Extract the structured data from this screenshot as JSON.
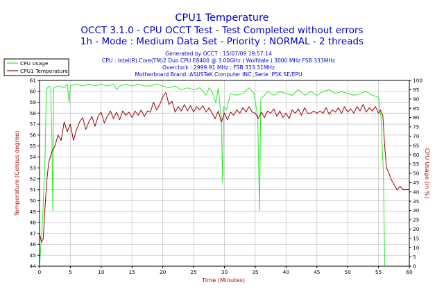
{
  "chart_data": {
    "type": "line",
    "title": "CPU1 Temperature",
    "subtitle_lines": [
      "OCCT 3.1.0 - CPU OCCT Test - Test Completed without errors",
      "1h - Mode : Medium Data Set - Priority : NORMAL - 2 threads"
    ],
    "info_lines": [
      "Generated by OCCT : 15/07/09 19:57:14",
      "CPU : Intel(R) Core(TM)2 Duo CPU E8400 @ 3.00GHz ( Wolfdale ) 3000 MHz FSB 333MHz",
      "Overclock : 2999.91 MHz ; FSB 333.31MHz",
      "Motherboard Brand :ASUSTeK Computer INC.,Serie :P5K SE/EPU"
    ],
    "xlabel": "Time (Minutes)",
    "ylabel_left": "Temperature (Celsius degree)",
    "ylabel_right": "CPU Usage (in %)",
    "xlim": [
      0,
      60
    ],
    "ylim_left": [
      44,
      61
    ],
    "ylim_right": [
      0,
      100
    ],
    "x_ticks": [
      "0",
      "5",
      "10",
      "15",
      "20",
      "25",
      "30",
      "35",
      "40",
      "45",
      "50",
      "55",
      "60"
    ],
    "y_ticks_left": [
      "44",
      "45",
      "46",
      "47",
      "48",
      "49",
      "50",
      "51",
      "52",
      "53",
      "54",
      "55",
      "56",
      "57",
      "58",
      "59",
      "60",
      "61"
    ],
    "y_ticks_right": [
      "0",
      "5",
      "10",
      "15",
      "20",
      "25",
      "30",
      "35",
      "40",
      "45",
      "50",
      "55",
      "60",
      "65",
      "70",
      "75",
      "80",
      "85",
      "90",
      "95",
      "100"
    ],
    "grid": true,
    "legend_position": "top-left",
    "series": [
      {
        "name": "CPU Usage",
        "color": "#22ee22",
        "axis": "right",
        "points": [
          [
            0,
            0
          ],
          [
            0.5,
            25
          ],
          [
            0.9,
            60
          ],
          [
            1.1,
            95
          ],
          [
            1.5,
            97
          ],
          [
            1.8,
            96
          ],
          [
            2.0,
            70
          ],
          [
            2.15,
            30
          ],
          [
            2.3,
            96
          ],
          [
            3,
            97
          ],
          [
            4,
            96
          ],
          [
            4.5,
            98
          ],
          [
            4.8,
            88
          ],
          [
            5.0,
            97
          ],
          [
            6,
            98
          ],
          [
            7,
            97
          ],
          [
            8,
            98
          ],
          [
            9,
            97
          ],
          [
            10,
            98
          ],
          [
            11,
            97
          ],
          [
            12,
            98
          ],
          [
            12.5,
            95
          ],
          [
            13,
            97
          ],
          [
            14,
            98
          ],
          [
            15,
            97
          ],
          [
            16,
            98
          ],
          [
            17,
            97
          ],
          [
            18,
            97
          ],
          [
            19,
            98
          ],
          [
            20,
            97
          ],
          [
            21,
            96
          ],
          [
            22,
            97
          ],
          [
            23,
            95
          ],
          [
            24,
            96
          ],
          [
            25,
            95
          ],
          [
            26,
            96
          ],
          [
            27,
            92
          ],
          [
            27.5,
            96
          ],
          [
            28,
            94
          ],
          [
            28.6,
            88
          ],
          [
            29,
            96
          ],
          [
            29.5,
            79
          ],
          [
            29.7,
            45
          ],
          [
            29.9,
            86
          ],
          [
            30.3,
            84
          ],
          [
            31,
            93
          ],
          [
            32,
            92
          ],
          [
            33,
            93
          ],
          [
            34,
            96
          ],
          [
            34.8,
            93
          ],
          [
            35.4,
            80
          ],
          [
            35.7,
            30
          ],
          [
            35.9,
            90
          ],
          [
            36.5,
            92
          ],
          [
            37,
            94
          ],
          [
            38,
            92
          ],
          [
            39,
            94
          ],
          [
            40,
            93
          ],
          [
            41,
            92
          ],
          [
            42,
            95
          ],
          [
            43,
            92
          ],
          [
            44,
            94
          ],
          [
            45,
            92
          ],
          [
            46,
            94
          ],
          [
            47,
            95
          ],
          [
            48,
            93
          ],
          [
            49,
            94
          ],
          [
            50,
            93
          ],
          [
            51,
            92
          ],
          [
            52,
            93
          ],
          [
            53,
            94
          ],
          [
            54,
            92
          ],
          [
            55,
            91
          ],
          [
            55.4,
            80
          ],
          [
            55.8,
            50
          ],
          [
            56.0,
            0
          ],
          [
            57,
            0
          ],
          [
            58,
            0
          ],
          [
            59,
            0
          ],
          [
            60,
            0
          ]
        ]
      },
      {
        "name": "CPU1 Temperature",
        "color": "#990000",
        "axis": "left",
        "points": [
          [
            0,
            47
          ],
          [
            0.3,
            46.2
          ],
          [
            0.6,
            46.5
          ],
          [
            0.9,
            49.5
          ],
          [
            1.2,
            52
          ],
          [
            1.5,
            53.5
          ],
          [
            2,
            54.5
          ],
          [
            2.5,
            55
          ],
          [
            3,
            56
          ],
          [
            3.5,
            55.5
          ],
          [
            4,
            57.2
          ],
          [
            4.5,
            56.3
          ],
          [
            5,
            57
          ],
          [
            5.5,
            55.5
          ],
          [
            6,
            56.5
          ],
          [
            6.5,
            57.2
          ],
          [
            7,
            57.6
          ],
          [
            7.5,
            56.5
          ],
          [
            8,
            57.2
          ],
          [
            8.5,
            57.7
          ],
          [
            9,
            56.8
          ],
          [
            9.5,
            57.7
          ],
          [
            10,
            58.1
          ],
          [
            10.5,
            57.1
          ],
          [
            11,
            57.7
          ],
          [
            11.5,
            58.2
          ],
          [
            12,
            57.5
          ],
          [
            12.5,
            58.1
          ],
          [
            13,
            57.4
          ],
          [
            13.5,
            58.2
          ],
          [
            14,
            57.8
          ],
          [
            14.5,
            58.1
          ],
          [
            15,
            57.6
          ],
          [
            15.5,
            58.2
          ],
          [
            16,
            57.8
          ],
          [
            16.5,
            58.3
          ],
          [
            17,
            57.7
          ],
          [
            17.5,
            58.2
          ],
          [
            18,
            58.1
          ],
          [
            18.5,
            59
          ],
          [
            19,
            58.3
          ],
          [
            19.5,
            58.8
          ],
          [
            20,
            59.5
          ],
          [
            20.5,
            59.9
          ],
          [
            21,
            58.8
          ],
          [
            21.5,
            59.1
          ],
          [
            22,
            58.1
          ],
          [
            22.5,
            58.6
          ],
          [
            23,
            58.2
          ],
          [
            23.5,
            58.8
          ],
          [
            24,
            58.2
          ],
          [
            24.5,
            58.7
          ],
          [
            25,
            58.1
          ],
          [
            25.5,
            58.6
          ],
          [
            26,
            58.3
          ],
          [
            26.5,
            58.7
          ],
          [
            27,
            58.1
          ],
          [
            27.5,
            58.5
          ],
          [
            28,
            58.0
          ],
          [
            28.5,
            57.5
          ],
          [
            29,
            58.2
          ],
          [
            29.5,
            57.2
          ],
          [
            30,
            58.0
          ],
          [
            30.5,
            57.4
          ],
          [
            31,
            58.1
          ],
          [
            31.5,
            57.8
          ],
          [
            32,
            58.3
          ],
          [
            32.5,
            58.0
          ],
          [
            33,
            58.5
          ],
          [
            33.5,
            58.1
          ],
          [
            34,
            58.6
          ],
          [
            34.5,
            58.1
          ],
          [
            35,
            58.0
          ],
          [
            35.5,
            57.5
          ],
          [
            36,
            58.1
          ],
          [
            36.5,
            57.6
          ],
          [
            37,
            58.2
          ],
          [
            37.5,
            58.0
          ],
          [
            38,
            58.4
          ],
          [
            38.5,
            57.7
          ],
          [
            39,
            58.2
          ],
          [
            39.5,
            57.6
          ],
          [
            40,
            58.0
          ],
          [
            40.5,
            57.5
          ],
          [
            41,
            58.3
          ],
          [
            41.5,
            58.0
          ],
          [
            42,
            58.4
          ],
          [
            42.5,
            57.8
          ],
          [
            43,
            58.5
          ],
          [
            43.5,
            58.0
          ],
          [
            44,
            58.0
          ],
          [
            44.5,
            58.2
          ],
          [
            45,
            58.0
          ],
          [
            45.5,
            58.2
          ],
          [
            46,
            58.0
          ],
          [
            46.5,
            58.5
          ],
          [
            47,
            57.9
          ],
          [
            47.5,
            58.3
          ],
          [
            48,
            58.1
          ],
          [
            48.5,
            58.5
          ],
          [
            49,
            58.0
          ],
          [
            49.5,
            58.6
          ],
          [
            50,
            58.1
          ],
          [
            50.5,
            58.4
          ],
          [
            51,
            58.0
          ],
          [
            51.5,
            58.6
          ],
          [
            52,
            58.2
          ],
          [
            52.5,
            58.8
          ],
          [
            53,
            58.1
          ],
          [
            53.5,
            58.5
          ],
          [
            54,
            58.2
          ],
          [
            54.5,
            58.6
          ],
          [
            55,
            58.0
          ],
          [
            55.3,
            58.3
          ],
          [
            55.7,
            57.8
          ],
          [
            56.0,
            55
          ],
          [
            56.3,
            53
          ],
          [
            56.7,
            52.5
          ],
          [
            57,
            52
          ],
          [
            57.5,
            51.5
          ],
          [
            58,
            51
          ],
          [
            58.5,
            51.3
          ],
          [
            59,
            51.0
          ],
          [
            59.5,
            51
          ],
          [
            60,
            51
          ]
        ]
      }
    ]
  }
}
